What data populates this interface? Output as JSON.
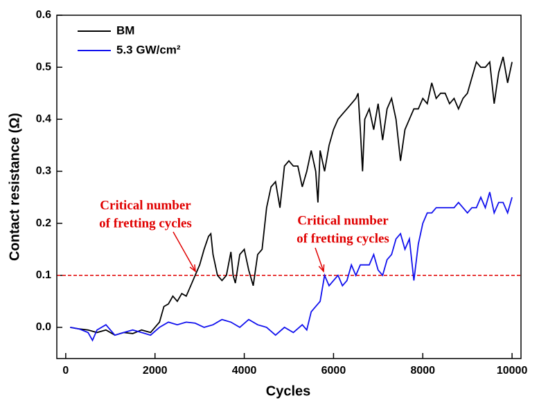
{
  "chart_data": {
    "type": "line",
    "xlabel": "Cycles",
    "ylabel": "Contact resistance (Ω)",
    "xlim": [
      -200,
      10200
    ],
    "ylim": [
      -0.06,
      0.6
    ],
    "xticks": [
      0,
      2000,
      4000,
      6000,
      8000,
      10000
    ],
    "yticks": [
      {
        "value": 0,
        "label": "0.0"
      },
      0.1,
      0.2,
      0.3,
      0.4,
      0.5,
      0.6
    ],
    "legend": "upper left",
    "hline": {
      "value": 0.1,
      "color": "#e00000"
    },
    "annotations": [
      {
        "lines": [
          "Critical number",
          "of fretting cycles"
        ],
        "color": "#e00000"
      },
      {
        "lines": [
          "Critical number",
          "of fretting cycles"
        ],
        "color": "#e00000"
      }
    ],
    "series": [
      {
        "name": "BM",
        "color": "#000000",
        "x": [
          100,
          300,
          500,
          700,
          900,
          1100,
          1300,
          1500,
          1700,
          1900,
          2000,
          2100,
          2200,
          2300,
          2400,
          2500,
          2600,
          2700,
          2800,
          2900,
          3000,
          3100,
          3200,
          3250,
          3300,
          3400,
          3500,
          3600,
          3700,
          3750,
          3800,
          3900,
          4000,
          4100,
          4200,
          4300,
          4400,
          4500,
          4600,
          4700,
          4800,
          4900,
          5000,
          5100,
          5200,
          5300,
          5400,
          5500,
          5600,
          5650,
          5700,
          5800,
          5900,
          6000,
          6100,
          6200,
          6300,
          6400,
          6500,
          6550,
          6600,
          6650,
          6700,
          6800,
          6900,
          7000,
          7100,
          7200,
          7300,
          7400,
          7500,
          7600,
          7700,
          7800,
          7900,
          8000,
          8100,
          8200,
          8300,
          8400,
          8500,
          8600,
          8700,
          8800,
          8900,
          9000,
          9100,
          9200,
          9300,
          9400,
          9500,
          9600,
          9700,
          9800,
          9900,
          10000
        ],
        "values": [
          0.0,
          -0.003,
          -0.005,
          -0.01,
          -0.005,
          -0.015,
          -0.01,
          -0.012,
          -0.005,
          -0.01,
          0.0,
          0.01,
          0.04,
          0.045,
          0.06,
          0.05,
          0.065,
          0.06,
          0.08,
          0.1,
          0.12,
          0.15,
          0.175,
          0.18,
          0.14,
          0.1,
          0.09,
          0.1,
          0.145,
          0.1,
          0.085,
          0.14,
          0.15,
          0.11,
          0.08,
          0.14,
          0.15,
          0.23,
          0.27,
          0.28,
          0.23,
          0.31,
          0.32,
          0.31,
          0.31,
          0.27,
          0.3,
          0.34,
          0.3,
          0.24,
          0.34,
          0.3,
          0.35,
          0.38,
          0.4,
          0.41,
          0.42,
          0.43,
          0.44,
          0.45,
          0.38,
          0.3,
          0.4,
          0.42,
          0.38,
          0.43,
          0.36,
          0.42,
          0.44,
          0.4,
          0.32,
          0.38,
          0.4,
          0.42,
          0.42,
          0.44,
          0.43,
          0.47,
          0.44,
          0.45,
          0.45,
          0.43,
          0.44,
          0.42,
          0.44,
          0.45,
          0.48,
          0.51,
          0.5,
          0.5,
          0.51,
          0.43,
          0.49,
          0.52,
          0.47,
          0.51
        ]
      },
      {
        "name": "5.3 GW/cm²",
        "color": "#1010ee",
        "x": [
          100,
          300,
          500,
          600,
          700,
          900,
          1100,
          1300,
          1500,
          1700,
          1900,
          2100,
          2300,
          2500,
          2700,
          2900,
          3100,
          3300,
          3500,
          3700,
          3900,
          4100,
          4300,
          4500,
          4700,
          4900,
          5100,
          5300,
          5400,
          5500,
          5600,
          5700,
          5800,
          5900,
          6000,
          6100,
          6200,
          6300,
          6400,
          6500,
          6600,
          6800,
          6900,
          7000,
          7100,
          7200,
          7300,
          7400,
          7500,
          7600,
          7700,
          7800,
          7900,
          8000,
          8100,
          8200,
          8300,
          8400,
          8500,
          8600,
          8700,
          8800,
          8900,
          9000,
          9100,
          9200,
          9300,
          9400,
          9500,
          9600,
          9700,
          9800,
          9900,
          10000
        ],
        "values": [
          0.0,
          -0.003,
          -0.01,
          -0.025,
          -0.005,
          0.005,
          -0.015,
          -0.01,
          -0.005,
          -0.01,
          -0.015,
          0.0,
          0.01,
          0.005,
          0.01,
          0.008,
          0.0,
          0.005,
          0.015,
          0.01,
          0.0,
          0.015,
          0.005,
          0.0,
          -0.015,
          0.0,
          -0.01,
          0.005,
          -0.005,
          0.03,
          0.04,
          0.05,
          0.1,
          0.08,
          0.09,
          0.1,
          0.08,
          0.09,
          0.12,
          0.1,
          0.12,
          0.12,
          0.14,
          0.11,
          0.1,
          0.13,
          0.14,
          0.17,
          0.18,
          0.15,
          0.17,
          0.09,
          0.16,
          0.2,
          0.22,
          0.22,
          0.23,
          0.23,
          0.23,
          0.23,
          0.23,
          0.24,
          0.23,
          0.22,
          0.23,
          0.23,
          0.25,
          0.23,
          0.26,
          0.22,
          0.24,
          0.24,
          0.22,
          0.25
        ]
      }
    ]
  }
}
